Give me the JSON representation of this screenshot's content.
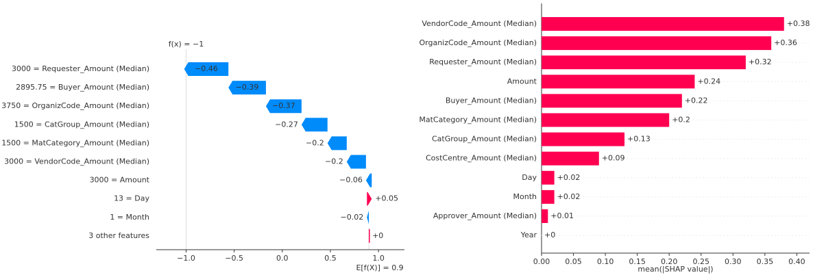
{
  "chart_data": [
    {
      "type": "waterfall",
      "categories": [
        "3000 = Requester_Amount (Median)",
        "2895.75 = Buyer_Amount (Median)",
        "3750 = OrganizCode_Amount (Median)",
        "1500 = CatGroup_Amount (Median)",
        "1500 = MatCategory_Amount (Median)",
        "3000 = VendorCode_Amount (Median)",
        "3000 = Amount",
        "13 = Day",
        "1 = Month",
        "3 other features"
      ],
      "values": [
        -0.46,
        -0.39,
        -0.37,
        -0.27,
        -0.2,
        -0.2,
        -0.06,
        0.05,
        -0.02,
        0
      ],
      "value_labels": [
        "−0.46",
        "−0.39",
        "−0.37",
        "−0.27",
        "−0.2",
        "−0.2",
        "−0.06",
        "+0.05",
        "−0.02",
        "+0"
      ],
      "base_value": 0.9,
      "base_label": "E[f(X)] = 0.9",
      "fx": -1,
      "fx_label": "f(x) = −1",
      "positive_color": "#ff0051",
      "negative_color": "#008bfb",
      "xlim": [
        -1.31,
        1.27
      ],
      "xticks": [
        {
          "value": -1,
          "label": "−1.0"
        },
        {
          "value": -0.5,
          "label": "−0.5"
        },
        {
          "value": 0,
          "label": "0.0"
        },
        {
          "value": 0.5,
          "label": "0.5"
        },
        {
          "value": 1,
          "label": "1.0"
        }
      ]
    },
    {
      "type": "hbar",
      "categories": [
        "VendorCode_Amount (Median)",
        "OrganizCode_Amount (Median)",
        "Requester_Amount (Median)",
        "Amount",
        "Buyer_Amount (Median)",
        "MatCategory_Amount (Median)",
        "CatGroup_Amount (Median)",
        "CostCentre_Amount (Median)",
        "Day",
        "Month",
        "Approver_Amount (Median)",
        "Year"
      ],
      "values": [
        0.38,
        0.36,
        0.32,
        0.24,
        0.22,
        0.2,
        0.13,
        0.09,
        0.02,
        0.02,
        0.01,
        0
      ],
      "value_labels": [
        "+0.38",
        "+0.36",
        "+0.32",
        "+0.24",
        "+0.22",
        "+0.2",
        "+0.13",
        "+0.09",
        "+0.02",
        "+0.02",
        "+0.01",
        "+0"
      ],
      "color": "#ff0051",
      "xlabel": "mean(|SHAP value|)",
      "xlim": [
        0,
        0.42
      ],
      "xticks": [
        {
          "value": 0,
          "label": "0.00"
        },
        {
          "value": 0.05,
          "label": "0.05"
        },
        {
          "value": 0.1,
          "label": "0.10"
        },
        {
          "value": 0.15,
          "label": "0.15"
        },
        {
          "value": 0.2,
          "label": "0.20"
        },
        {
          "value": 0.25,
          "label": "0.25"
        },
        {
          "value": 0.3,
          "label": "0.30"
        },
        {
          "value": 0.35,
          "label": "0.35"
        },
        {
          "value": 0.4,
          "label": "0.40"
        }
      ]
    }
  ]
}
